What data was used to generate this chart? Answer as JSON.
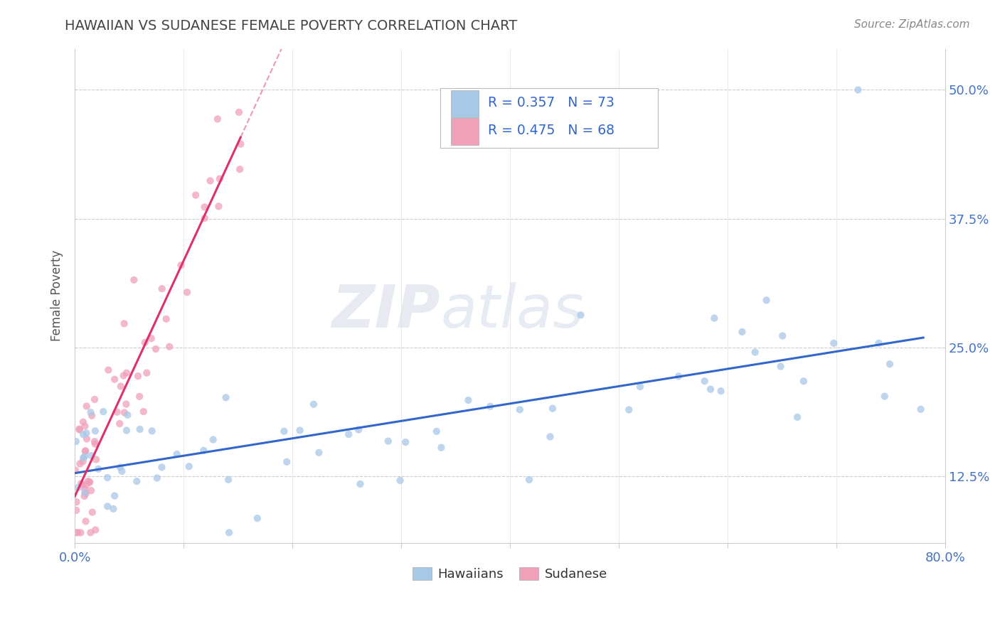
{
  "title": "HAWAIIAN VS SUDANESE FEMALE POVERTY CORRELATION CHART",
  "source": "Source: ZipAtlas.com",
  "ylabel": "Female Poverty",
  "yticks": [
    "12.5%",
    "25.0%",
    "37.5%",
    "50.0%"
  ],
  "ytick_vals": [
    0.125,
    0.25,
    0.375,
    0.5
  ],
  "xmin": 0.0,
  "xmax": 0.8,
  "ymin": 0.06,
  "ymax": 0.54,
  "hawaiian_color": "#a8c8e8",
  "sudanese_color": "#f0a0b8",
  "hawaiian_line_color": "#3366cc",
  "sudanese_line_color": "#e0306a",
  "watermark_zip": "ZIP",
  "watermark_atlas": "atlas",
  "title_color": "#444444",
  "source_color": "#888888",
  "tick_color": "#4472c4",
  "grid_color": "#cccccc"
}
